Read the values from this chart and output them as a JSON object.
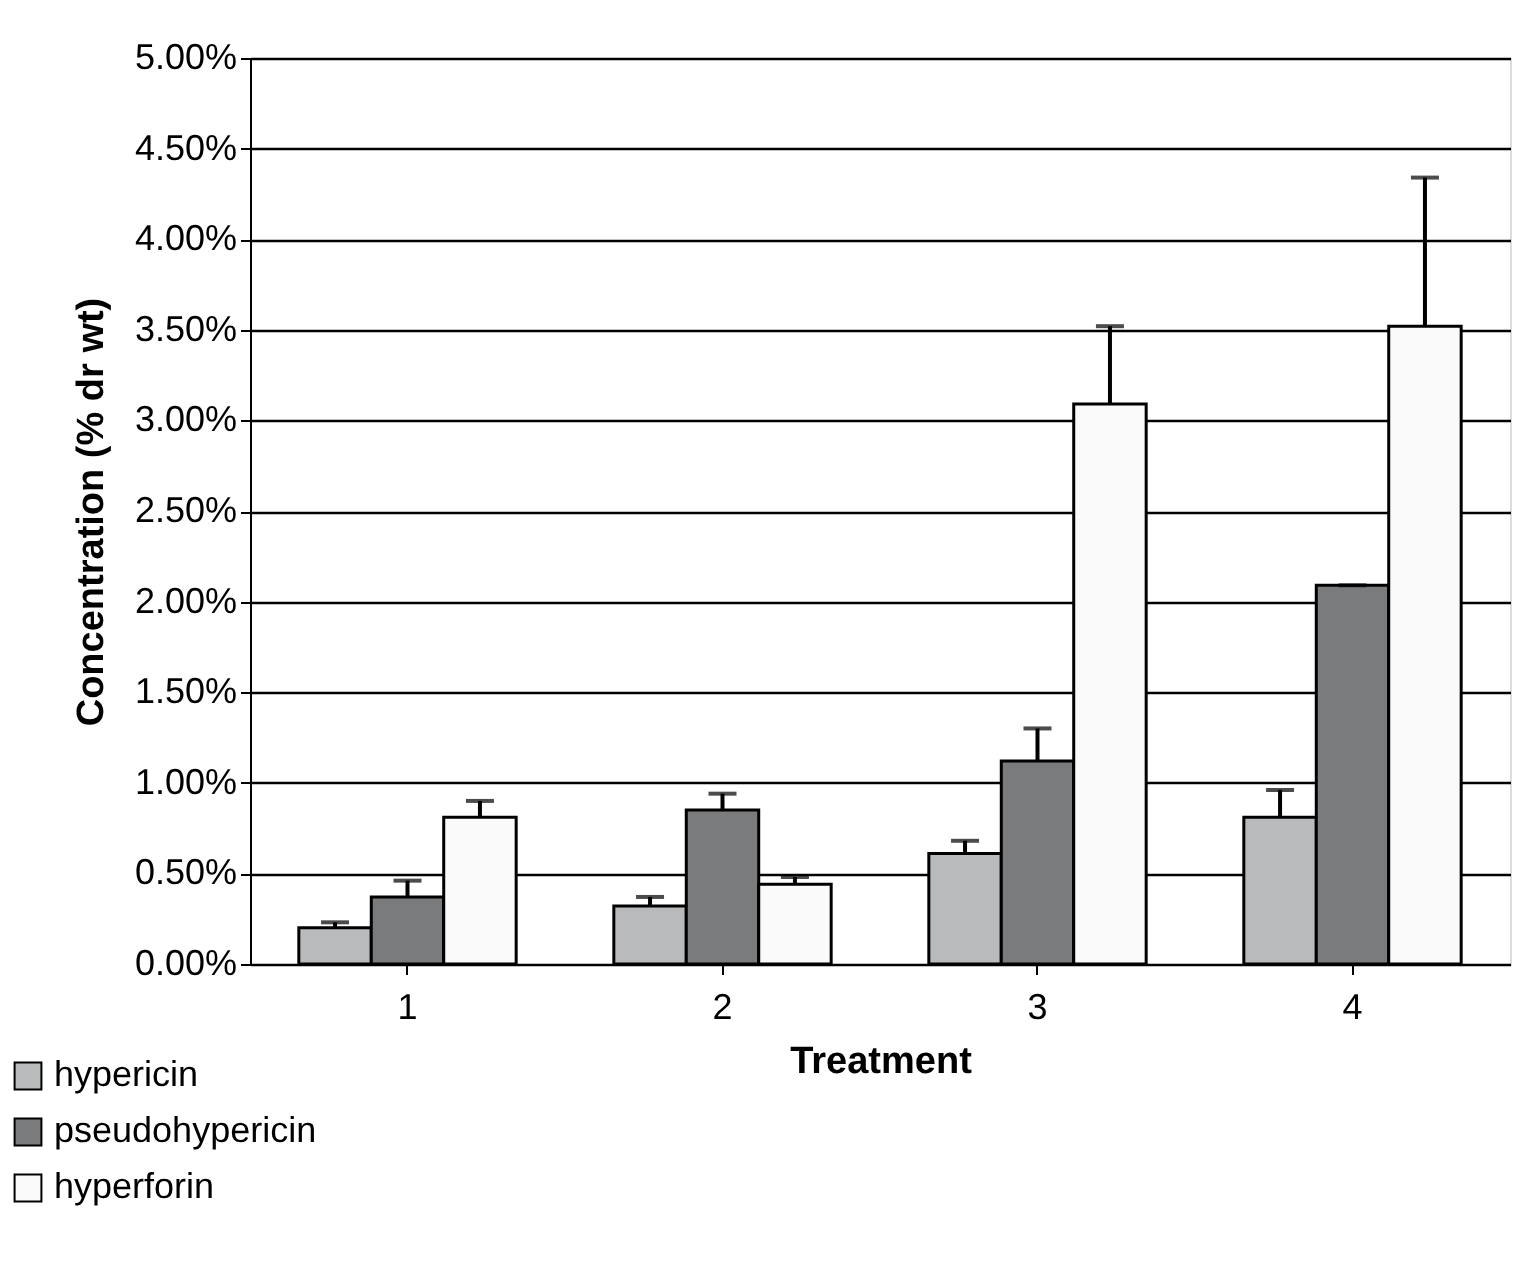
{
  "chart_data": {
    "type": "bar",
    "xlabel": "Treatment",
    "ylabel": "Concentration (% dr wt)",
    "categories": [
      "1",
      "2",
      "3",
      "4"
    ],
    "series": [
      {
        "name": "hypericin",
        "color": "#b9babc",
        "values": [
          0.2,
          0.32,
          0.61,
          0.81
        ],
        "errors": [
          [
            0.2,
            0.23
          ],
          [
            0.32,
            0.37
          ],
          [
            0.61,
            0.68
          ],
          [
            0.81,
            0.96
          ]
        ]
      },
      {
        "name": "pseudohypericin",
        "color": "#7a7b7d",
        "values": [
          0.37,
          0.85,
          1.12,
          2.09
        ],
        "errors": [
          [
            0.37,
            0.46
          ],
          [
            0.85,
            0.94
          ],
          [
            1.12,
            1.3
          ],
          [
            2.09,
            2.09
          ]
        ]
      },
      {
        "name": "hyperforin",
        "color": "#fafafa",
        "values": [
          0.81,
          0.44,
          3.09,
          3.52
        ],
        "errors": [
          [
            0.81,
            0.9
          ],
          [
            0.44,
            0.48
          ],
          [
            3.09,
            3.52
          ],
          [
            3.52,
            4.34
          ]
        ]
      }
    ],
    "ylim": [
      0,
      5
    ],
    "yticks": [
      {
        "value": 0,
        "label": "0.00%"
      },
      {
        "value": 0.5,
        "label": "0.50%"
      },
      {
        "value": 1,
        "label": "1.00%"
      },
      {
        "value": 1.5,
        "label": "1.50%"
      },
      {
        "value": 2,
        "label": "2.00%"
      },
      {
        "value": 2.5,
        "label": "2.50%"
      },
      {
        "value": 3,
        "label": "3.00%"
      },
      {
        "value": 3.5,
        "label": "3.50%"
      },
      {
        "value": 4,
        "label": "4.00%"
      },
      {
        "value": 4.5,
        "label": "4.50%"
      },
      {
        "value": 5,
        "label": "5.00%"
      }
    ],
    "grid": "y",
    "legend": "bottom left"
  }
}
